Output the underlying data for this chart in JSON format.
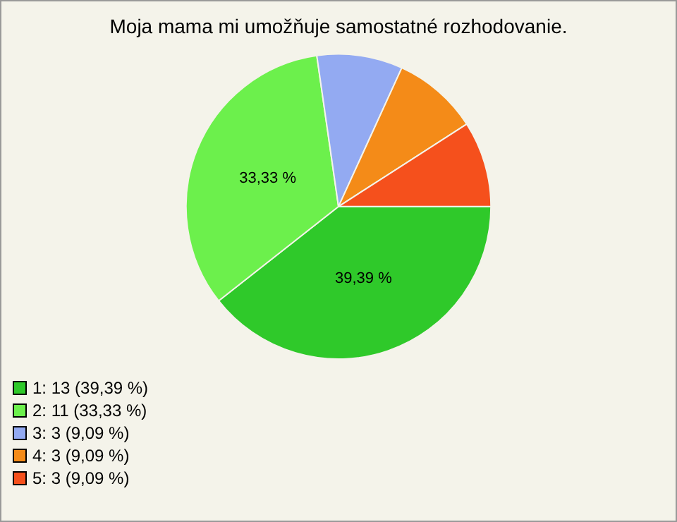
{
  "chart_data": {
    "type": "pie",
    "title": "Moja mama mi umožňuje samostatné rozhodovanie.",
    "categories": [
      "1: 13 (39,39 %)",
      "2: 11 (33,33 %)",
      "3: 3 (9,09 %)",
      "4: 3 (9,09 %)",
      "5: 3 (9,09 %)"
    ],
    "values": [
      39.39,
      33.33,
      9.09,
      9.09,
      9.09
    ],
    "colors": [
      "#2fc92a",
      "#6cf04c",
      "#93aaf2",
      "#f48b18",
      "#f5501c"
    ],
    "value_labels": [
      "39,39 %",
      "33,33 %",
      null,
      null,
      null
    ],
    "legend": "bottom left"
  }
}
